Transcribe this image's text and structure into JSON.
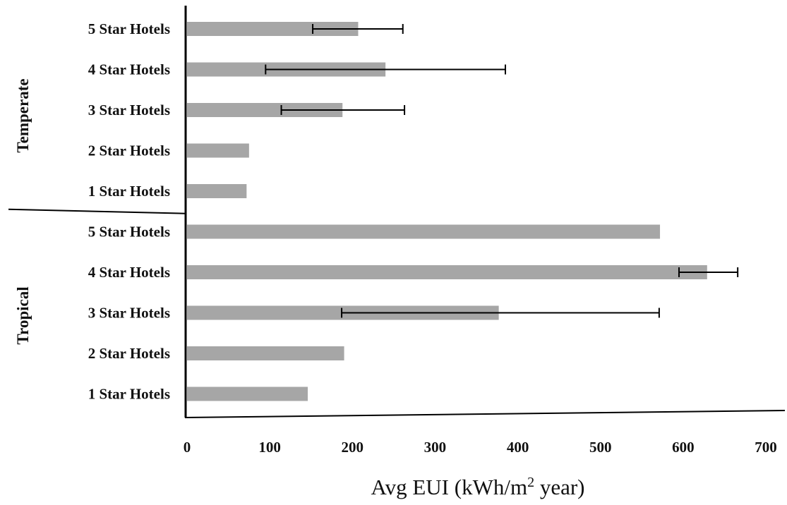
{
  "chart_data": {
    "type": "bar",
    "orientation": "horizontal",
    "xlabel": {
      "prefix": "Avg EUI (kWh/m",
      "superscript": "2",
      "suffix": " year)"
    },
    "xlim": [
      0,
      700
    ],
    "xticks": [
      "0",
      "100",
      "200",
      "300",
      "400",
      "500",
      "600",
      "700"
    ],
    "grid": false,
    "colors": {
      "bar": "#a6a6a6",
      "error_bar": "#000000",
      "axis": "#000000"
    },
    "groups": [
      {
        "name": "Temperate",
        "categories": [
          "5 Star Hotels",
          "4 Star Hotels",
          "3 Star Hotels",
          "2 Star Hotels",
          "1 Star Hotels"
        ],
        "values": [
          207,
          240,
          188,
          75,
          72
        ],
        "error_low": [
          152,
          95,
          114,
          null,
          null
        ],
        "error_high": [
          261,
          385,
          263,
          null,
          null
        ]
      },
      {
        "name": "Tropical",
        "categories": [
          "5 Star Hotels",
          "4 Star Hotels",
          "3 Star Hotels",
          "2 Star Hotels",
          "1 Star Hotels"
        ],
        "values": [
          572,
          629,
          377,
          190,
          146
        ],
        "error_low": [
          null,
          595,
          187,
          null,
          null
        ],
        "error_high": [
          null,
          666,
          571,
          null,
          null
        ]
      }
    ]
  }
}
